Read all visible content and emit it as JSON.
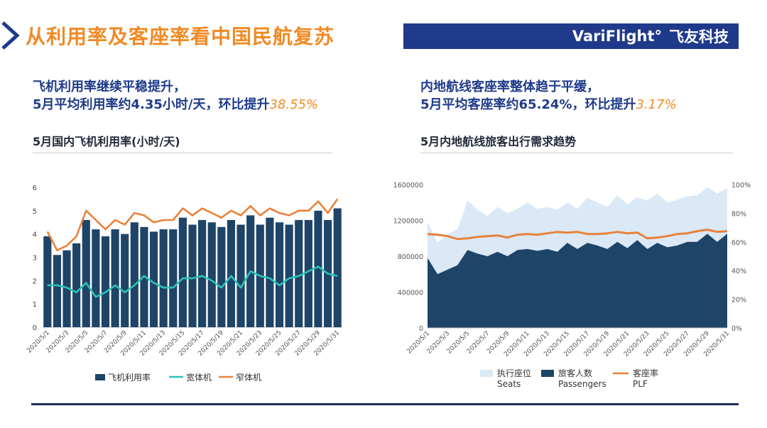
{
  "header": {
    "title": "从利用率及客座率看中国民航复苏",
    "brand_en": "VariFlight°",
    "brand_cn": "飞友科技"
  },
  "left_panel": {
    "headline_line1": "飞机利用率继续平稳提升，",
    "headline_line2": "5月平均利用率约4.35小时/天，环比提升",
    "headline_highlight": "38.55%",
    "chart_title": "5月国内飞机利用率(小时/天)"
  },
  "right_panel": {
    "headline_line1": "内地航线客座率整体趋于平缓，",
    "headline_line2": "5月平均客座率约65.24%，环比提升",
    "headline_highlight": "3.17%",
    "chart_title": "5月内地航线旅客出行需求趋势"
  },
  "colors": {
    "title_orange": "#f08a24",
    "brand_blue": "#1f3a8a",
    "bar_navy": "#1e4468",
    "wide_teal": "#2cc3b5",
    "narrow_orange": "#e8823a",
    "seats_light": "#dbe8f6",
    "passengers_navy": "#1e4468",
    "plf_orange": "#e8823a"
  },
  "chart_data": [
    {
      "type": "bar",
      "title": "5月国内飞机利用率(小时/天)",
      "x": [
        "2020/5/1",
        "2020/5/2",
        "2020/5/3",
        "2020/5/4",
        "2020/5/5",
        "2020/5/6",
        "2020/5/7",
        "2020/5/8",
        "2020/5/9",
        "2020/5/10",
        "2020/5/11",
        "2020/5/12",
        "2020/5/13",
        "2020/5/14",
        "2020/5/15",
        "2020/5/16",
        "2020/5/17",
        "2020/5/18",
        "2020/5/19",
        "2020/5/20",
        "2020/5/21",
        "2020/5/22",
        "2020/5/23",
        "2020/5/24",
        "2020/5/25",
        "2020/5/26",
        "2020/5/27",
        "2020/5/28",
        "2020/5/29",
        "2020/5/30",
        "2020/5/31"
      ],
      "x_tick_labels": [
        "2020/5/1",
        "2020/5/3",
        "2020/5/5",
        "2020/5/7",
        "2020/5/9",
        "2020/5/11",
        "2020/5/13",
        "2020/5/15",
        "2020/5/17",
        "2020/5/19",
        "2020/5/21",
        "2020/5/23",
        "2020/5/25",
        "2020/5/27",
        "2020/5/29",
        "2020/5/31"
      ],
      "ylim": [
        0,
        6
      ],
      "yticks": [
        "0",
        "1",
        "2",
        "3",
        "4",
        "5",
        "6"
      ],
      "series": [
        {
          "name": "飞机利用率",
          "kind": "bar",
          "values": [
            3.9,
            3.1,
            3.3,
            3.6,
            4.6,
            4.2,
            3.9,
            4.2,
            4.0,
            4.5,
            4.3,
            4.1,
            4.2,
            4.2,
            4.7,
            4.4,
            4.6,
            4.5,
            4.3,
            4.6,
            4.4,
            4.8,
            4.4,
            4.7,
            4.5,
            4.4,
            4.6,
            4.6,
            5.0,
            4.6,
            5.1
          ]
        },
        {
          "name": "宽体机",
          "kind": "line",
          "values": [
            1.8,
            1.8,
            1.7,
            1.5,
            1.9,
            1.3,
            1.5,
            1.8,
            1.5,
            1.8,
            2.2,
            1.9,
            1.7,
            1.7,
            2.1,
            2.1,
            2.2,
            2.0,
            1.7,
            2.2,
            1.7,
            2.4,
            2.2,
            2.1,
            1.8,
            2.1,
            2.2,
            2.4,
            2.6,
            2.3,
            2.2
          ]
        },
        {
          "name": "窄体机",
          "kind": "line",
          "values": [
            4.1,
            3.3,
            3.5,
            3.9,
            5.0,
            4.6,
            4.2,
            4.6,
            4.4,
            4.9,
            4.8,
            4.5,
            4.6,
            4.6,
            5.1,
            4.8,
            5.1,
            4.9,
            4.7,
            5.0,
            4.8,
            5.2,
            4.8,
            5.1,
            4.9,
            4.8,
            5.0,
            5.0,
            5.4,
            4.9,
            5.5
          ]
        }
      ]
    },
    {
      "type": "area",
      "title": "5月内地航线旅客出行需求趋势",
      "x": [
        "2020/5/1",
        "2020/5/2",
        "2020/5/3",
        "2020/5/4",
        "2020/5/5",
        "2020/5/6",
        "2020/5/7",
        "2020/5/8",
        "2020/5/9",
        "2020/5/10",
        "2020/5/11",
        "2020/5/12",
        "2020/5/13",
        "2020/5/14",
        "2020/5/15",
        "2020/5/16",
        "2020/5/17",
        "2020/5/18",
        "2020/5/19",
        "2020/5/20",
        "2020/5/21",
        "2020/5/22",
        "2020/5/23",
        "2020/5/24",
        "2020/5/25",
        "2020/5/26",
        "2020/5/27",
        "2020/5/28",
        "2020/5/29",
        "2020/5/30",
        "2020/5/31"
      ],
      "x_tick_labels": [
        "2020/5/1",
        "2020/5/3",
        "2020/5/5",
        "2020/5/7",
        "2020/5/9",
        "2020/5/11",
        "2020/5/13",
        "2020/5/15",
        "2020/5/17",
        "2020/5/19",
        "2020/5/21",
        "2020/5/23",
        "2020/5/25",
        "2020/5/27",
        "2020/5/29",
        "2020/5/31"
      ],
      "ylim_left": [
        0,
        1600000
      ],
      "yticks_left": [
        "0",
        "400000",
        "800000",
        "1200000",
        "1600000"
      ],
      "ylim_right": [
        0,
        100
      ],
      "yticks_right": [
        "0%",
        "20%",
        "40%",
        "60%",
        "80%",
        "100%"
      ],
      "series": [
        {
          "name": "执行座位",
          "name_en": "Seats",
          "kind": "area",
          "axis": "left",
          "values": [
            1180000,
            950000,
            1050000,
            1100000,
            1420000,
            1320000,
            1250000,
            1350000,
            1280000,
            1330000,
            1400000,
            1330000,
            1350000,
            1320000,
            1400000,
            1330000,
            1450000,
            1400000,
            1350000,
            1480000,
            1380000,
            1460000,
            1420000,
            1500000,
            1400000,
            1430000,
            1470000,
            1480000,
            1570000,
            1500000,
            1560000
          ]
        },
        {
          "name": "旅客人数",
          "name_en": "Passengers",
          "kind": "area",
          "axis": "left",
          "values": [
            780000,
            600000,
            650000,
            700000,
            870000,
            830000,
            800000,
            850000,
            800000,
            870000,
            880000,
            860000,
            880000,
            850000,
            950000,
            880000,
            950000,
            920000,
            880000,
            960000,
            890000,
            980000,
            880000,
            950000,
            900000,
            920000,
            960000,
            960000,
            1050000,
            960000,
            1050000
          ]
        },
        {
          "name": "客座率",
          "name_en": "PLF",
          "kind": "line",
          "axis": "right",
          "values": [
            65.5,
            65.0,
            64.0,
            62.0,
            62.5,
            63.5,
            64.0,
            64.5,
            63.0,
            65.0,
            65.5,
            65.0,
            66.0,
            67.0,
            66.5,
            67.0,
            65.5,
            65.5,
            66.0,
            67.0,
            66.0,
            66.5,
            62.5,
            63.0,
            64.0,
            65.5,
            66.0,
            67.5,
            68.5,
            67.0,
            67.5
          ]
        }
      ]
    }
  ]
}
